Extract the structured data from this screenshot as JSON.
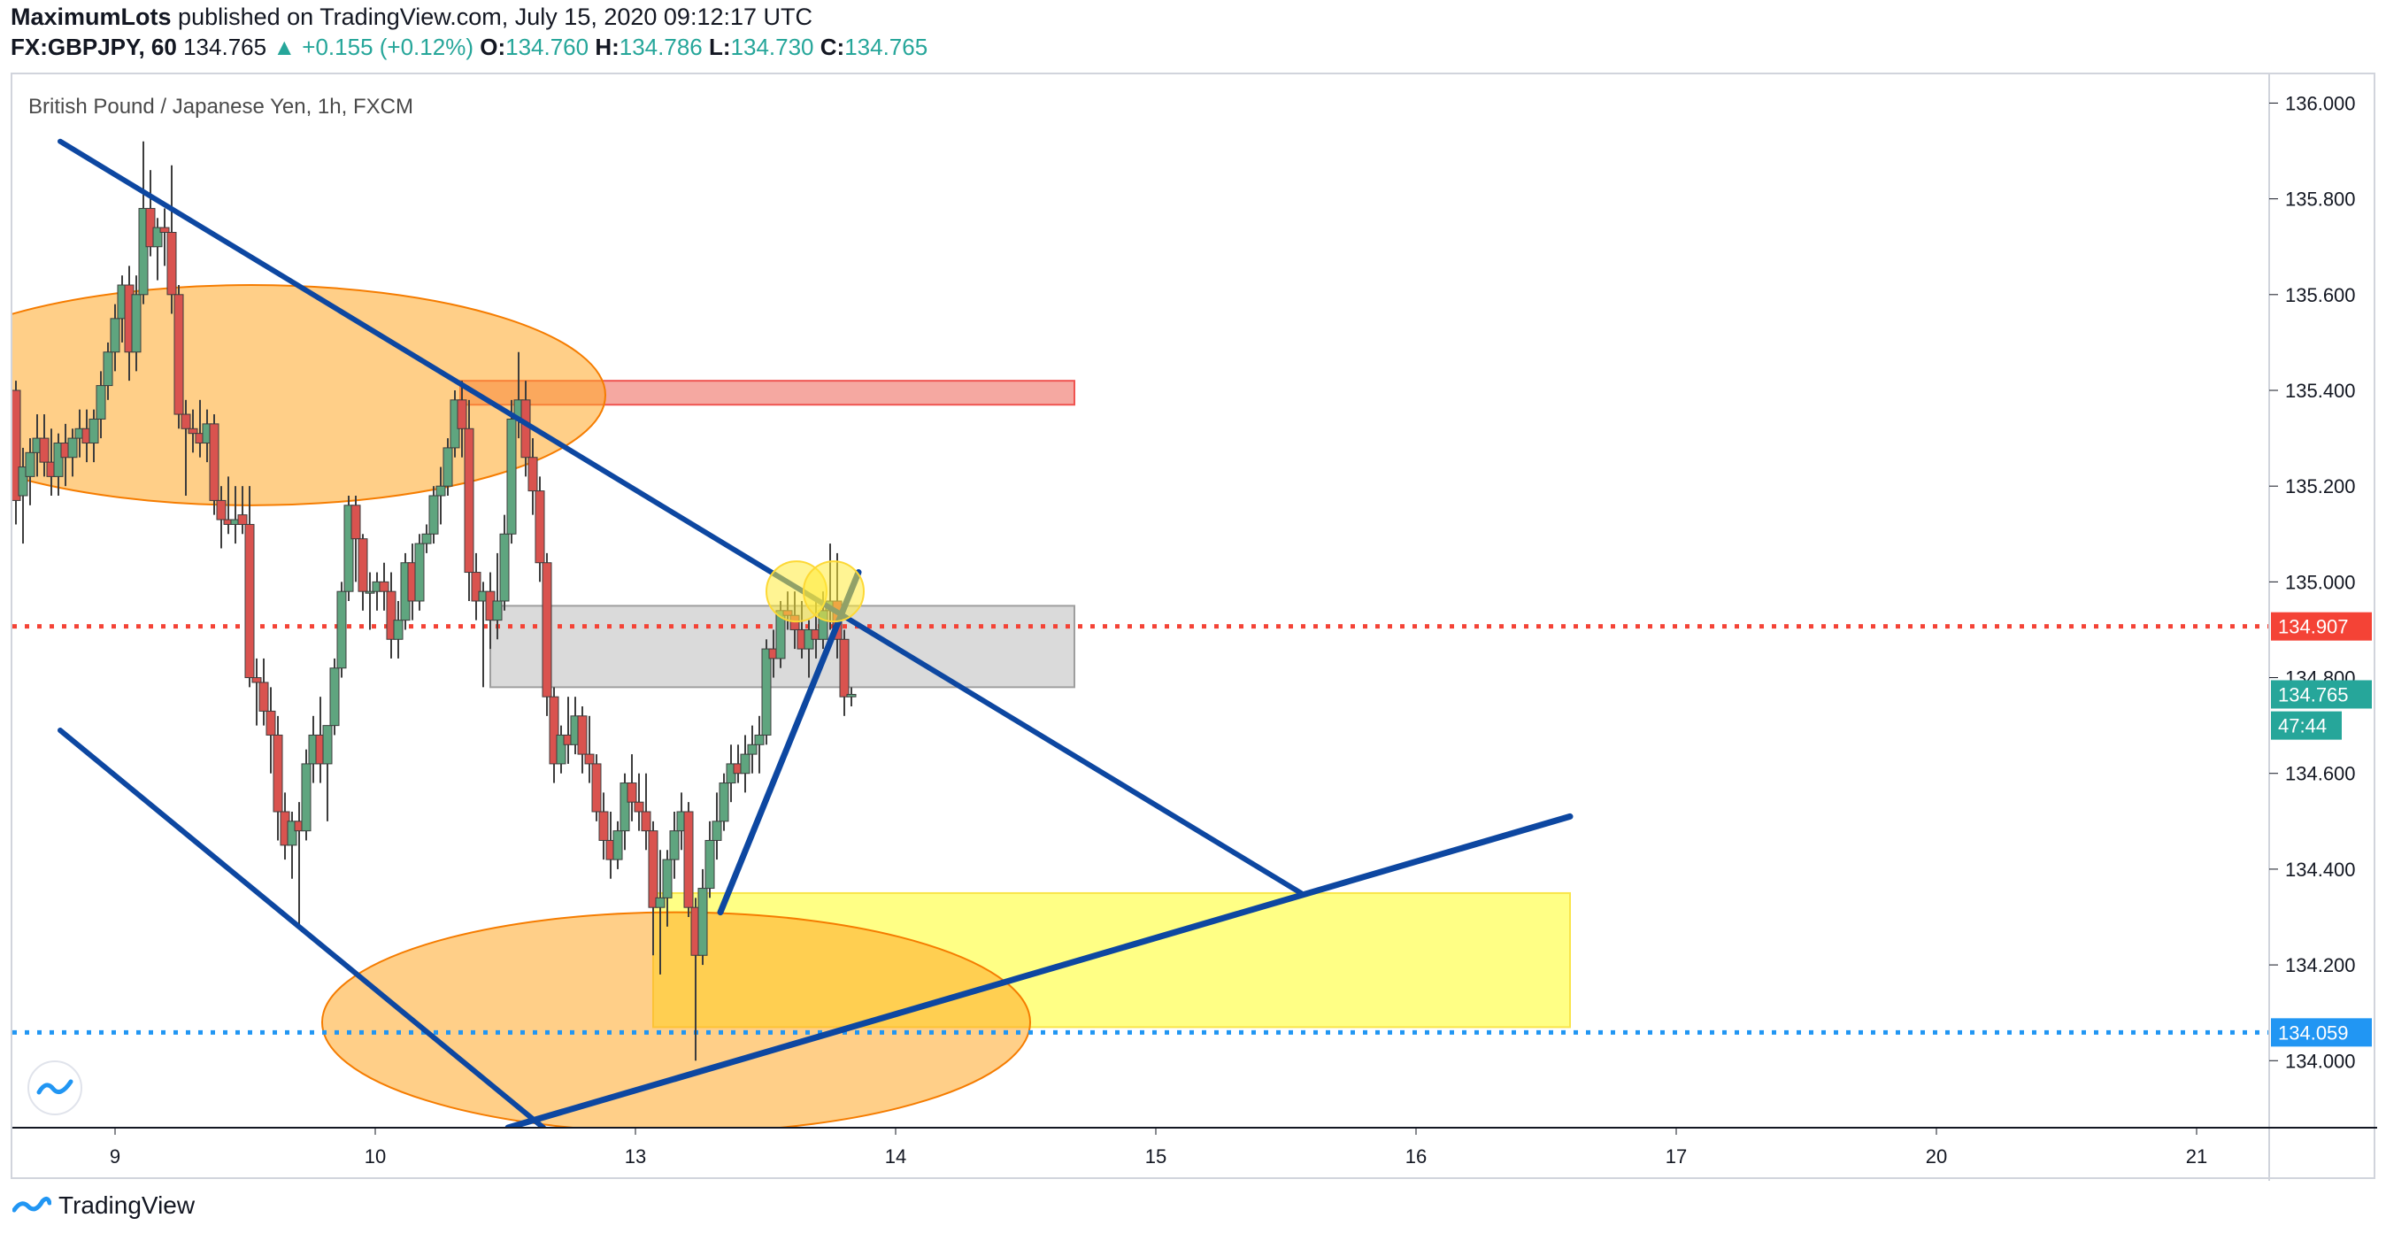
{
  "header": {
    "publisher": "MaximumLots",
    "published_text": "published on TradingView.com, July 15, 2020 09:12:17 UTC",
    "symbol": "FX:GBPJPY, 60",
    "last": "134.765",
    "change": "+0.155 (+0.12%)",
    "open_label": "O:",
    "open": "134.760",
    "high_label": "H:",
    "high": "134.786",
    "low_label": "L:",
    "low": "134.730",
    "close_label": "C:",
    "close": "134.765"
  },
  "footer": {
    "brand": "TradingView"
  },
  "colors": {
    "up": "#26a69a",
    "down": "#ef5350",
    "upBody": "#5fa57f",
    "downBody": "#d9534f",
    "line": "#0d47a1",
    "ellipse": "#ffa726",
    "supply": "#f28b82",
    "grayZone": "#bdbdbd",
    "demand": "#ffff66",
    "redLine": "#f44336",
    "blueLine": "#2196f3",
    "axisText": "#131722"
  },
  "chart_data": {
    "type": "candlestick",
    "title": "British Pound / Japanese Yen, 1h, FXCM",
    "ylim": [
      133.86,
      136.06
    ],
    "xlim": [
      8.6,
      21.35
    ],
    "y_ticks": [
      "136.000",
      "135.800",
      "135.600",
      "135.400",
      "135.200",
      "135.000",
      "134.800",
      "134.600",
      "134.400",
      "134.200",
      "134.000"
    ],
    "x_ticks": [
      {
        "label": "9",
        "x": 9
      },
      {
        "label": "10",
        "x": 10
      },
      {
        "label": "13",
        "x": 11
      },
      {
        "label": "14",
        "x": 12
      },
      {
        "label": "15",
        "x": 13
      },
      {
        "label": "16",
        "x": 14
      },
      {
        "label": "17",
        "x": 15
      },
      {
        "label": "20",
        "x": 16
      },
      {
        "label": "21",
        "x": 17
      }
    ],
    "price_labels": [
      {
        "value": "134.907",
        "y": 134.907,
        "color": "#f44336"
      },
      {
        "value": "134.765",
        "y": 134.765,
        "color": "#26a69a"
      },
      {
        "value": "47:44",
        "y": 134.7,
        "color": "#26a69a"
      },
      {
        "value": "134.059",
        "y": 134.059,
        "color": "#2196f3"
      }
    ],
    "horizontal_lines": [
      {
        "y": 134.907,
        "color": "#f44336",
        "style": "dotted"
      },
      {
        "y": 134.059,
        "color": "#2196f3",
        "style": "dotted"
      }
    ],
    "zones": [
      {
        "name": "supply",
        "x1": 11.13,
        "x2": 14.6,
        "y1": 135.37,
        "y2": 135.42
      },
      {
        "name": "resistance",
        "x1": 11.3,
        "x2": 14.6,
        "y1": 134.78,
        "y2": 134.95
      },
      {
        "name": "demand",
        "x1": 12.22,
        "x2": 17.4,
        "y1": 134.07,
        "y2": 134.35
      }
    ],
    "ellipses": [
      {
        "cx": 9.95,
        "cy": 135.39,
        "rx": 2.0,
        "ry": 0.23
      },
      {
        "cx": 12.35,
        "cy": 134.08,
        "rx": 2.0,
        "ry": 0.23
      }
    ],
    "circles": [
      {
        "cx": 13.03,
        "cy": 134.98
      },
      {
        "cx": 13.24,
        "cy": 134.98
      }
    ],
    "trend_lines": [
      {
        "x1": 8.87,
        "y1": 135.92,
        "x2": 15.88,
        "y2": 134.35,
        "width": 6
      },
      {
        "x1": 8.87,
        "y1": 134.69,
        "x2": 11.6,
        "y2": 133.86,
        "width": 6
      },
      {
        "x1": 12.6,
        "y1": 134.31,
        "x2": 13.38,
        "y2": 135.02,
        "width": 7
      },
      {
        "x1": 11.4,
        "y1": 133.86,
        "x2": 17.4,
        "y2": 134.51,
        "width": 7
      }
    ],
    "candles": [
      {
        "x": 8.62,
        "o": 135.4,
        "h": 135.42,
        "l": 135.12,
        "c": 135.17
      },
      {
        "x": 8.66,
        "o": 135.18,
        "h": 135.28,
        "l": 135.08,
        "c": 135.24
      },
      {
        "x": 8.7,
        "o": 135.22,
        "h": 135.3,
        "l": 135.16,
        "c": 135.27
      },
      {
        "x": 8.74,
        "o": 135.27,
        "h": 135.35,
        "l": 135.22,
        "c": 135.3
      },
      {
        "x": 8.78,
        "o": 135.3,
        "h": 135.35,
        "l": 135.22,
        "c": 135.25
      },
      {
        "x": 8.82,
        "o": 135.25,
        "h": 135.32,
        "l": 135.18,
        "c": 135.22
      },
      {
        "x": 8.86,
        "o": 135.22,
        "h": 135.31,
        "l": 135.18,
        "c": 135.29
      },
      {
        "x": 8.9,
        "o": 135.29,
        "h": 135.33,
        "l": 135.2,
        "c": 135.26
      },
      {
        "x": 8.94,
        "o": 135.26,
        "h": 135.32,
        "l": 135.22,
        "c": 135.3
      },
      {
        "x": 8.98,
        "o": 135.3,
        "h": 135.36,
        "l": 135.26,
        "c": 135.32
      },
      {
        "x": 9.02,
        "o": 135.32,
        "h": 135.36,
        "l": 135.25,
        "c": 135.29
      },
      {
        "x": 9.06,
        "o": 135.29,
        "h": 135.36,
        "l": 135.25,
        "c": 135.34
      },
      {
        "x": 9.1,
        "o": 135.34,
        "h": 135.44,
        "l": 135.3,
        "c": 135.41
      },
      {
        "x": 9.14,
        "o": 135.41,
        "h": 135.5,
        "l": 135.38,
        "c": 135.48
      },
      {
        "x": 9.18,
        "o": 135.48,
        "h": 135.58,
        "l": 135.44,
        "c": 135.55
      },
      {
        "x": 9.22,
        "o": 135.55,
        "h": 135.64,
        "l": 135.5,
        "c": 135.62
      },
      {
        "x": 9.26,
        "o": 135.62,
        "h": 135.66,
        "l": 135.42,
        "c": 135.48
      },
      {
        "x": 9.3,
        "o": 135.48,
        "h": 135.64,
        "l": 135.44,
        "c": 135.6
      },
      {
        "x": 9.34,
        "o": 135.6,
        "h": 135.92,
        "l": 135.58,
        "c": 135.78
      },
      {
        "x": 9.38,
        "o": 135.78,
        "h": 135.86,
        "l": 135.68,
        "c": 135.7
      },
      {
        "x": 9.42,
        "o": 135.7,
        "h": 135.76,
        "l": 135.63,
        "c": 135.74
      },
      {
        "x": 9.46,
        "o": 135.74,
        "h": 135.78,
        "l": 135.66,
        "c": 135.73
      },
      {
        "x": 9.5,
        "o": 135.73,
        "h": 135.87,
        "l": 135.56,
        "c": 135.6
      },
      {
        "x": 9.54,
        "o": 135.6,
        "h": 135.62,
        "l": 135.32,
        "c": 135.35
      },
      {
        "x": 9.58,
        "o": 135.35,
        "h": 135.38,
        "l": 135.18,
        "c": 135.32
      },
      {
        "x": 9.62,
        "o": 135.32,
        "h": 135.36,
        "l": 135.27,
        "c": 135.31
      },
      {
        "x": 9.66,
        "o": 135.31,
        "h": 135.38,
        "l": 135.26,
        "c": 135.29
      },
      {
        "x": 9.7,
        "o": 135.29,
        "h": 135.36,
        "l": 135.25,
        "c": 135.33
      },
      {
        "x": 9.74,
        "o": 135.33,
        "h": 135.35,
        "l": 135.14,
        "c": 135.17
      },
      {
        "x": 9.78,
        "o": 135.17,
        "h": 135.2,
        "l": 135.07,
        "c": 135.13
      },
      {
        "x": 9.82,
        "o": 135.13,
        "h": 135.22,
        "l": 135.1,
        "c": 135.12
      },
      {
        "x": 9.86,
        "o": 135.12,
        "h": 135.2,
        "l": 135.08,
        "c": 135.13
      },
      {
        "x": 9.9,
        "o": 135.14,
        "h": 135.2,
        "l": 135.1,
        "c": 135.12
      },
      {
        "x": 9.94,
        "o": 135.12,
        "h": 135.2,
        "l": 134.78,
        "c": 134.8
      },
      {
        "x": 9.98,
        "o": 134.8,
        "h": 134.84,
        "l": 134.7,
        "c": 134.79
      },
      {
        "x": 10.02,
        "o": 134.79,
        "h": 134.84,
        "l": 134.7,
        "c": 134.73
      },
      {
        "x": 10.06,
        "o": 134.73,
        "h": 134.78,
        "l": 134.6,
        "c": 134.68
      },
      {
        "x": 10.1,
        "o": 134.68,
        "h": 134.72,
        "l": 134.46,
        "c": 134.52
      },
      {
        "x": 10.14,
        "o": 134.52,
        "h": 134.56,
        "l": 134.42,
        "c": 134.45
      },
      {
        "x": 10.18,
        "o": 134.45,
        "h": 134.52,
        "l": 134.38,
        "c": 134.5
      },
      {
        "x": 10.22,
        "o": 134.5,
        "h": 134.54,
        "l": 134.28,
        "c": 134.48
      },
      {
        "x": 10.26,
        "o": 134.48,
        "h": 134.65,
        "l": 134.46,
        "c": 134.62
      },
      {
        "x": 10.3,
        "o": 134.62,
        "h": 134.72,
        "l": 134.58,
        "c": 134.68
      },
      {
        "x": 10.34,
        "o": 134.68,
        "h": 134.76,
        "l": 134.58,
        "c": 134.62
      },
      {
        "x": 10.38,
        "o": 134.62,
        "h": 134.7,
        "l": 134.5,
        "c": 134.7
      },
      {
        "x": 10.42,
        "o": 134.7,
        "h": 134.84,
        "l": 134.68,
        "c": 134.82
      },
      {
        "x": 10.46,
        "o": 134.82,
        "h": 135.0,
        "l": 134.8,
        "c": 134.98
      },
      {
        "x": 10.5,
        "o": 134.98,
        "h": 135.18,
        "l": 134.96,
        "c": 135.16
      },
      {
        "x": 10.54,
        "o": 135.16,
        "h": 135.18,
        "l": 135.0,
        "c": 135.09
      },
      {
        "x": 10.58,
        "o": 135.09,
        "h": 135.1,
        "l": 134.94,
        "c": 134.98
      },
      {
        "x": 10.62,
        "o": 134.98,
        "h": 135.02,
        "l": 134.9,
        "c": 134.98
      },
      {
        "x": 10.66,
        "o": 134.98,
        "h": 135.02,
        "l": 134.94,
        "c": 135.0
      },
      {
        "x": 10.7,
        "o": 135.0,
        "h": 135.04,
        "l": 134.94,
        "c": 134.98
      },
      {
        "x": 10.74,
        "o": 134.98,
        "h": 135.02,
        "l": 134.84,
        "c": 134.88
      },
      {
        "x": 10.78,
        "o": 134.88,
        "h": 134.96,
        "l": 134.84,
        "c": 134.92
      },
      {
        "x": 10.82,
        "o": 134.92,
        "h": 135.06,
        "l": 134.9,
        "c": 135.04
      },
      {
        "x": 10.86,
        "o": 135.04,
        "h": 135.08,
        "l": 134.92,
        "c": 134.96
      },
      {
        "x": 10.9,
        "o": 134.96,
        "h": 135.1,
        "l": 134.94,
        "c": 135.08
      },
      {
        "x": 10.94,
        "o": 135.08,
        "h": 135.12,
        "l": 135.06,
        "c": 135.1
      },
      {
        "x": 10.98,
        "o": 135.1,
        "h": 135.2,
        "l": 135.08,
        "c": 135.18
      },
      {
        "x": 11.02,
        "o": 135.18,
        "h": 135.24,
        "l": 135.12,
        "c": 135.2
      },
      {
        "x": 11.06,
        "o": 135.2,
        "h": 135.3,
        "l": 135.18,
        "c": 135.28
      },
      {
        "x": 11.1,
        "o": 135.28,
        "h": 135.4,
        "l": 135.26,
        "c": 135.38
      },
      {
        "x": 11.14,
        "o": 135.38,
        "h": 135.42,
        "l": 135.26,
        "c": 135.32
      },
      {
        "x": 11.18,
        "o": 135.32,
        "h": 135.38,
        "l": 134.96,
        "c": 135.02
      },
      {
        "x": 11.22,
        "o": 135.02,
        "h": 135.06,
        "l": 134.92,
        "c": 134.96
      },
      {
        "x": 11.26,
        "o": 134.96,
        "h": 135.0,
        "l": 134.78,
        "c": 134.98
      },
      {
        "x": 11.3,
        "o": 134.98,
        "h": 135.02,
        "l": 134.86,
        "c": 134.92
      },
      {
        "x": 11.34,
        "o": 134.92,
        "h": 135.06,
        "l": 134.88,
        "c": 134.96
      },
      {
        "x": 11.38,
        "o": 134.96,
        "h": 135.14,
        "l": 134.94,
        "c": 135.1
      },
      {
        "x": 11.42,
        "o": 135.1,
        "h": 135.38,
        "l": 135.08,
        "c": 135.34
      },
      {
        "x": 11.46,
        "o": 135.34,
        "h": 135.48,
        "l": 135.3,
        "c": 135.38
      },
      {
        "x": 11.5,
        "o": 135.38,
        "h": 135.42,
        "l": 135.22,
        "c": 135.26
      },
      {
        "x": 11.54,
        "o": 135.26,
        "h": 135.3,
        "l": 135.14,
        "c": 135.19
      },
      {
        "x": 11.58,
        "o": 135.19,
        "h": 135.22,
        "l": 135.0,
        "c": 135.04
      },
      {
        "x": 11.62,
        "o": 135.04,
        "h": 135.06,
        "l": 134.72,
        "c": 134.76
      },
      {
        "x": 11.66,
        "o": 134.76,
        "h": 134.78,
        "l": 134.58,
        "c": 134.62
      },
      {
        "x": 11.7,
        "o": 134.62,
        "h": 134.7,
        "l": 134.6,
        "c": 134.68
      },
      {
        "x": 11.74,
        "o": 134.68,
        "h": 134.76,
        "l": 134.62,
        "c": 134.66
      },
      {
        "x": 11.78,
        "o": 134.66,
        "h": 134.76,
        "l": 134.64,
        "c": 134.72
      },
      {
        "x": 11.82,
        "o": 134.72,
        "h": 134.74,
        "l": 134.6,
        "c": 134.64
      },
      {
        "x": 11.86,
        "o": 134.64,
        "h": 134.72,
        "l": 134.58,
        "c": 134.62
      },
      {
        "x": 11.9,
        "o": 134.62,
        "h": 134.64,
        "l": 134.5,
        "c": 134.52
      },
      {
        "x": 11.94,
        "o": 134.52,
        "h": 134.56,
        "l": 134.42,
        "c": 134.46
      },
      {
        "x": 11.98,
        "o": 134.46,
        "h": 134.52,
        "l": 134.38,
        "c": 134.42
      },
      {
        "x": 12.02,
        "o": 134.42,
        "h": 134.5,
        "l": 134.4,
        "c": 134.48
      },
      {
        "x": 12.06,
        "o": 134.48,
        "h": 134.6,
        "l": 134.44,
        "c": 134.58
      },
      {
        "x": 12.1,
        "o": 134.58,
        "h": 134.64,
        "l": 134.5,
        "c": 134.54
      },
      {
        "x": 12.14,
        "o": 134.54,
        "h": 134.6,
        "l": 134.48,
        "c": 134.52
      },
      {
        "x": 12.18,
        "o": 134.52,
        "h": 134.6,
        "l": 134.44,
        "c": 134.48
      },
      {
        "x": 12.22,
        "o": 134.48,
        "h": 134.5,
        "l": 134.22,
        "c": 134.32
      },
      {
        "x": 12.26,
        "o": 134.32,
        "h": 134.44,
        "l": 134.18,
        "c": 134.34
      },
      {
        "x": 12.3,
        "o": 134.34,
        "h": 134.44,
        "l": 134.28,
        "c": 134.42
      },
      {
        "x": 12.34,
        "o": 134.42,
        "h": 134.52,
        "l": 134.38,
        "c": 134.48
      },
      {
        "x": 12.38,
        "o": 134.48,
        "h": 134.56,
        "l": 134.44,
        "c": 134.52
      },
      {
        "x": 12.42,
        "o": 134.52,
        "h": 134.54,
        "l": 134.3,
        "c": 134.32
      },
      {
        "x": 12.46,
        "o": 134.32,
        "h": 134.34,
        "l": 134.0,
        "c": 134.22
      },
      {
        "x": 12.5,
        "o": 134.22,
        "h": 134.4,
        "l": 134.2,
        "c": 134.36
      },
      {
        "x": 12.54,
        "o": 134.36,
        "h": 134.5,
        "l": 134.34,
        "c": 134.46
      },
      {
        "x": 12.58,
        "o": 134.46,
        "h": 134.56,
        "l": 134.42,
        "c": 134.5
      },
      {
        "x": 12.62,
        "o": 134.5,
        "h": 134.6,
        "l": 134.48,
        "c": 134.58
      },
      {
        "x": 12.66,
        "o": 134.58,
        "h": 134.66,
        "l": 134.54,
        "c": 134.62
      },
      {
        "x": 12.7,
        "o": 134.62,
        "h": 134.66,
        "l": 134.58,
        "c": 134.6
      },
      {
        "x": 12.74,
        "o": 134.6,
        "h": 134.68,
        "l": 134.56,
        "c": 134.64
      },
      {
        "x": 12.78,
        "o": 134.64,
        "h": 134.7,
        "l": 134.6,
        "c": 134.66
      },
      {
        "x": 12.82,
        "o": 134.66,
        "h": 134.72,
        "l": 134.6,
        "c": 134.68
      },
      {
        "x": 12.86,
        "o": 134.68,
        "h": 134.88,
        "l": 134.66,
        "c": 134.86
      },
      {
        "x": 12.9,
        "o": 134.86,
        "h": 134.9,
        "l": 134.8,
        "c": 134.84
      },
      {
        "x": 12.94,
        "o": 134.84,
        "h": 134.96,
        "l": 134.82,
        "c": 134.94
      },
      {
        "x": 12.98,
        "o": 134.94,
        "h": 134.98,
        "l": 134.9,
        "c": 134.93
      },
      {
        "x": 13.02,
        "o": 134.93,
        "h": 134.98,
        "l": 134.86,
        "c": 134.9
      },
      {
        "x": 13.06,
        "o": 134.9,
        "h": 134.96,
        "l": 134.84,
        "c": 134.86
      },
      {
        "x": 13.1,
        "o": 134.86,
        "h": 134.92,
        "l": 134.8,
        "c": 134.9
      },
      {
        "x": 13.14,
        "o": 134.9,
        "h": 134.96,
        "l": 134.84,
        "c": 134.88
      },
      {
        "x": 13.18,
        "o": 134.88,
        "h": 134.98,
        "l": 134.86,
        "c": 134.94
      },
      {
        "x": 13.22,
        "o": 134.94,
        "h": 135.08,
        "l": 134.9,
        "c": 134.96
      },
      {
        "x": 13.26,
        "o": 134.96,
        "h": 135.06,
        "l": 134.84,
        "c": 134.88
      },
      {
        "x": 13.3,
        "o": 134.88,
        "h": 134.9,
        "l": 134.72,
        "c": 134.76
      },
      {
        "x": 13.34,
        "o": 134.76,
        "h": 134.78,
        "l": 134.74,
        "c": 134.765
      }
    ]
  }
}
